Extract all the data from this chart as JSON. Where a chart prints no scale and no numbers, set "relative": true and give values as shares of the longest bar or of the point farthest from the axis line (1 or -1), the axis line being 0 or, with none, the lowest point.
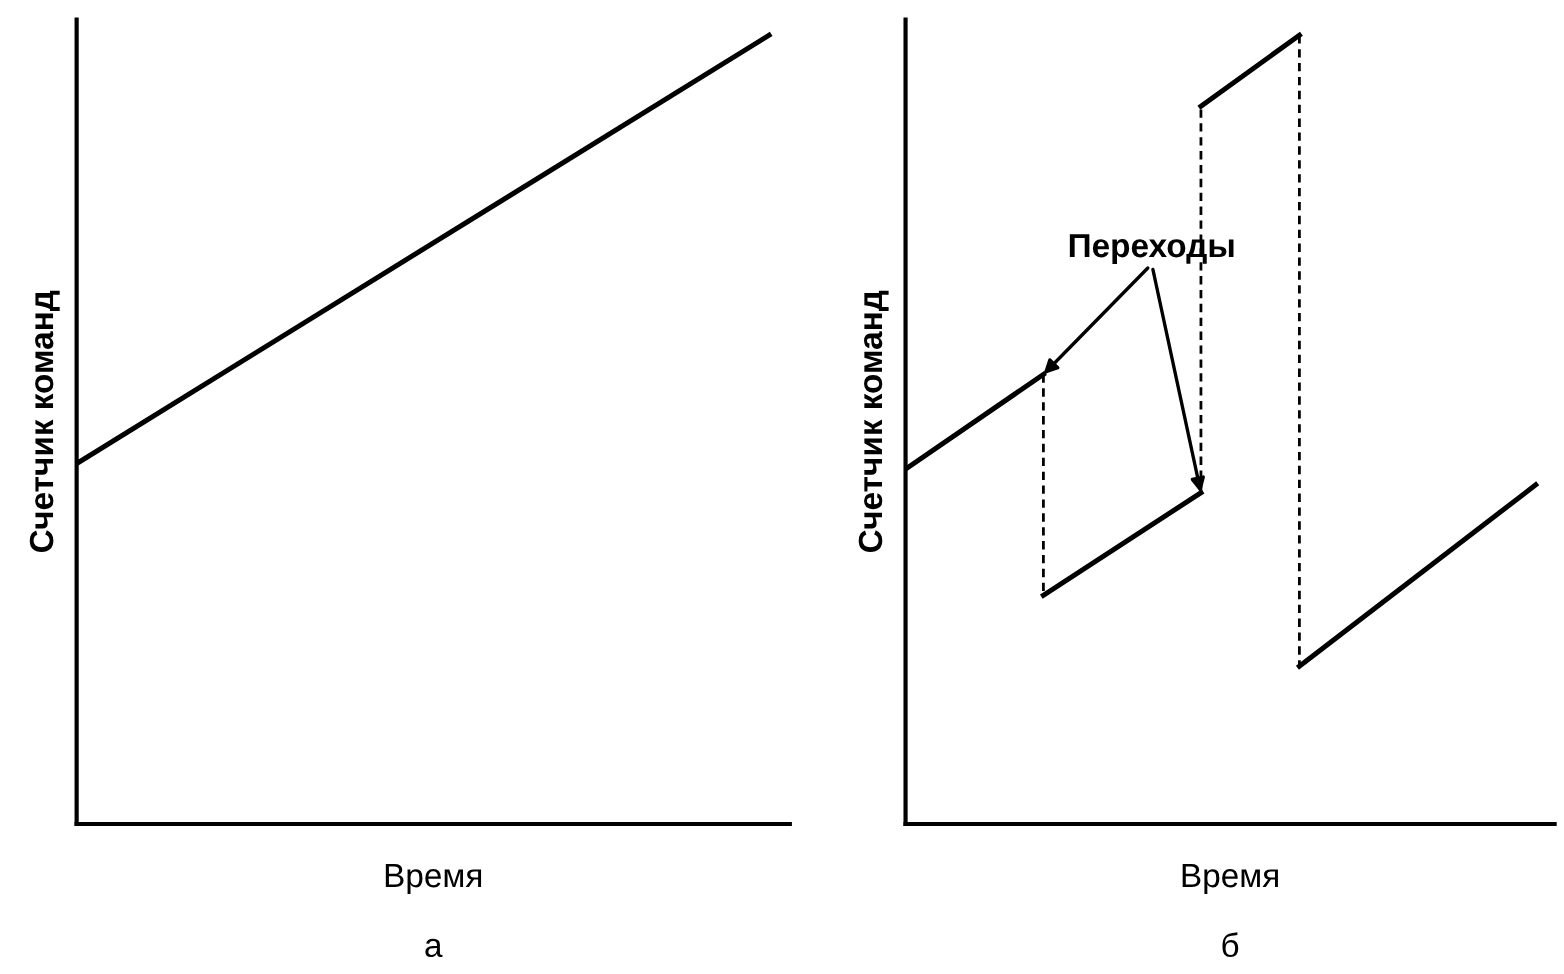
{
  "chart_data": [
    {
      "type": "line",
      "relative": true,
      "xlabel": "Время",
      "ylabel": "Счетчик команд",
      "subtitle": "а",
      "tick_labels": false,
      "categories": [
        null,
        null,
        null,
        null,
        null,
        null,
        null,
        null,
        null,
        null,
        null,
        null,
        null,
        null,
        null,
        null,
        null,
        null,
        null,
        null,
        null,
        null,
        null,
        null,
        null,
        null,
        null,
        null,
        null,
        null,
        null
      ],
      "series": [
        {
          "values": [
            0.457,
            null,
            null,
            null,
            null,
            null,
            null,
            null,
            null,
            null,
            null,
            null,
            null,
            null,
            null,
            null,
            null,
            null,
            null,
            null,
            null,
            null,
            null,
            null,
            null,
            null,
            null,
            null,
            null,
            null,
            1
          ],
          "color": "#000000"
        }
      ]
    },
    {
      "type": "line",
      "relative": true,
      "xlabel": "Время",
      "ylabel": "Счетчик команд",
      "subtitle": "б",
      "tick_labels": false,
      "annotations": [
        "Переходы"
      ],
      "categories": [
        null,
        null,
        null,
        null,
        null,
        null,
        null,
        null,
        null,
        null,
        null,
        null,
        null,
        null,
        null,
        null,
        null,
        null,
        null,
        null,
        null,
        null,
        null,
        null,
        null,
        null,
        null,
        null,
        null,
        null,
        null,
        null,
        null
      ],
      "series": [
        {
          "values": [
            0.45,
            null,
            null,
            null,
            null,
            null,
            null,
            0.57,
            null,
            null,
            null,
            null,
            null,
            null,
            null,
            null,
            null,
            null,
            null,
            null,
            null,
            null,
            null,
            null,
            null,
            null,
            null,
            null,
            null,
            null,
            null,
            null,
            null
          ],
          "color": "#000000"
        },
        {
          "values": [
            null,
            null,
            null,
            null,
            null,
            null,
            null,
            0.29,
            null,
            null,
            null,
            null,
            null,
            null,
            null,
            0.42,
            null,
            null,
            null,
            null,
            null,
            null,
            null,
            null,
            null,
            null,
            null,
            null,
            null,
            null,
            null,
            null,
            null
          ],
          "color": "#000000"
        },
        {
          "values": [
            null,
            null,
            null,
            null,
            null,
            null,
            null,
            null,
            null,
            null,
            null,
            null,
            null,
            null,
            null,
            0.91,
            null,
            null,
            null,
            null,
            1,
            null,
            null,
            null,
            null,
            null,
            null,
            null,
            null,
            null,
            null,
            null,
            null
          ],
          "color": "#000000"
        },
        {
          "values": [
            null,
            null,
            null,
            null,
            null,
            null,
            null,
            null,
            null,
            null,
            null,
            null,
            null,
            null,
            null,
            null,
            null,
            null,
            null,
            null,
            0.2,
            null,
            null,
            null,
            null,
            null,
            null,
            null,
            null,
            null,
            null,
            null,
            0.43
          ],
          "color": "#000000"
        }
      ]
    }
  ]
}
